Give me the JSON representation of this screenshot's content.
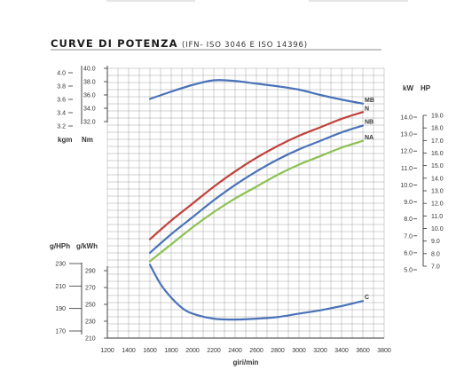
{
  "title": "CURVE DI POTENZA",
  "subtitle": "(IFN- ISO 3046 E ISO 14396)",
  "chart_data": [
    {
      "type": "line",
      "name": "power",
      "axes": {
        "x": {
          "label": "giri/min",
          "range": [
            1200,
            3800
          ],
          "ticks": [
            1200,
            1400,
            1600,
            1800,
            2000,
            2200,
            2400,
            2600,
            2800,
            3000,
            3200,
            3400,
            3600,
            3800
          ]
        },
        "torque_kgm": {
          "label": "kgm",
          "range": [
            3.2,
            4.0
          ],
          "ticks": [
            3.2,
            3.4,
            3.6,
            3.8,
            4.0
          ]
        },
        "torque_nm": {
          "label": "Nm",
          "range": [
            32.0,
            40.0
          ],
          "ticks": [
            32.0,
            34.0,
            36.0,
            38.0,
            40.0
          ]
        },
        "power_kw": {
          "label": "kW",
          "range": [
            5.0,
            14.0
          ],
          "ticks": [
            5.0,
            6.0,
            7.0,
            8.0,
            9.0,
            10.0,
            11.0,
            12.0,
            13.0,
            14.0
          ]
        },
        "power_hp": {
          "label": "HP",
          "range": [
            7.0,
            19.0
          ],
          "ticks": [
            7.0,
            8.0,
            9.0,
            10.0,
            11.0,
            12.0,
            13.0,
            14.0,
            15.0,
            16.0,
            17.0,
            18.0,
            19.0
          ]
        }
      },
      "series": [
        {
          "name": "MB",
          "axis": "torque_nm",
          "color": "#4a72b8",
          "x": [
            1600,
            1800,
            2000,
            2200,
            2400,
            2600,
            2800,
            3000,
            3200,
            3400,
            3600
          ],
          "y": [
            35.4,
            36.5,
            37.5,
            38.2,
            38.1,
            37.7,
            37.3,
            36.8,
            36.0,
            35.3,
            34.7
          ]
        },
        {
          "name": "N",
          "axis": "power_kw",
          "color": "#c0413c",
          "x": [
            1600,
            1800,
            2000,
            2200,
            2400,
            2600,
            2800,
            3000,
            3200,
            3400,
            3600
          ],
          "y": [
            6.8,
            7.9,
            8.9,
            9.9,
            10.8,
            11.6,
            12.3,
            12.9,
            13.4,
            13.9,
            14.3
          ]
        },
        {
          "name": "NB",
          "axis": "power_kw",
          "color": "#4a72b8",
          "x": [
            1600,
            1800,
            2000,
            2200,
            2400,
            2600,
            2800,
            3000,
            3200,
            3400,
            3600
          ],
          "y": [
            6.0,
            7.1,
            8.1,
            9.1,
            10.0,
            10.8,
            11.5,
            12.1,
            12.6,
            13.1,
            13.5
          ]
        },
        {
          "name": "NA",
          "axis": "power_kw",
          "color": "#8cc152",
          "x": [
            1600,
            1800,
            2000,
            2200,
            2400,
            2600,
            2800,
            3000,
            3200,
            3400,
            3600
          ],
          "y": [
            5.5,
            6.5,
            7.5,
            8.4,
            9.2,
            9.9,
            10.6,
            11.2,
            11.7,
            12.2,
            12.6
          ]
        }
      ]
    },
    {
      "type": "line",
      "name": "consumption",
      "axes": {
        "x": {
          "label": "giri/min",
          "range": [
            1200,
            3800
          ]
        },
        "fuel_ghph": {
          "label": "g/HPh",
          "range": [
            170,
            230
          ],
          "ticks": [
            170,
            190,
            210,
            230
          ]
        },
        "fuel_gkwh": {
          "label": "g/kWh",
          "range": [
            210,
            290
          ],
          "ticks": [
            210,
            230,
            250,
            270,
            290
          ]
        }
      },
      "series": [
        {
          "name": "C",
          "axis": "fuel_gkwh",
          "color": "#4a72b8",
          "x": [
            1600,
            1700,
            1800,
            1900,
            2000,
            2200,
            2400,
            2600,
            2800,
            3000,
            3200,
            3400,
            3600
          ],
          "y": [
            297,
            274,
            258,
            246,
            239,
            233,
            232,
            233,
            235,
            239,
            243,
            248,
            254
          ]
        }
      ]
    }
  ]
}
